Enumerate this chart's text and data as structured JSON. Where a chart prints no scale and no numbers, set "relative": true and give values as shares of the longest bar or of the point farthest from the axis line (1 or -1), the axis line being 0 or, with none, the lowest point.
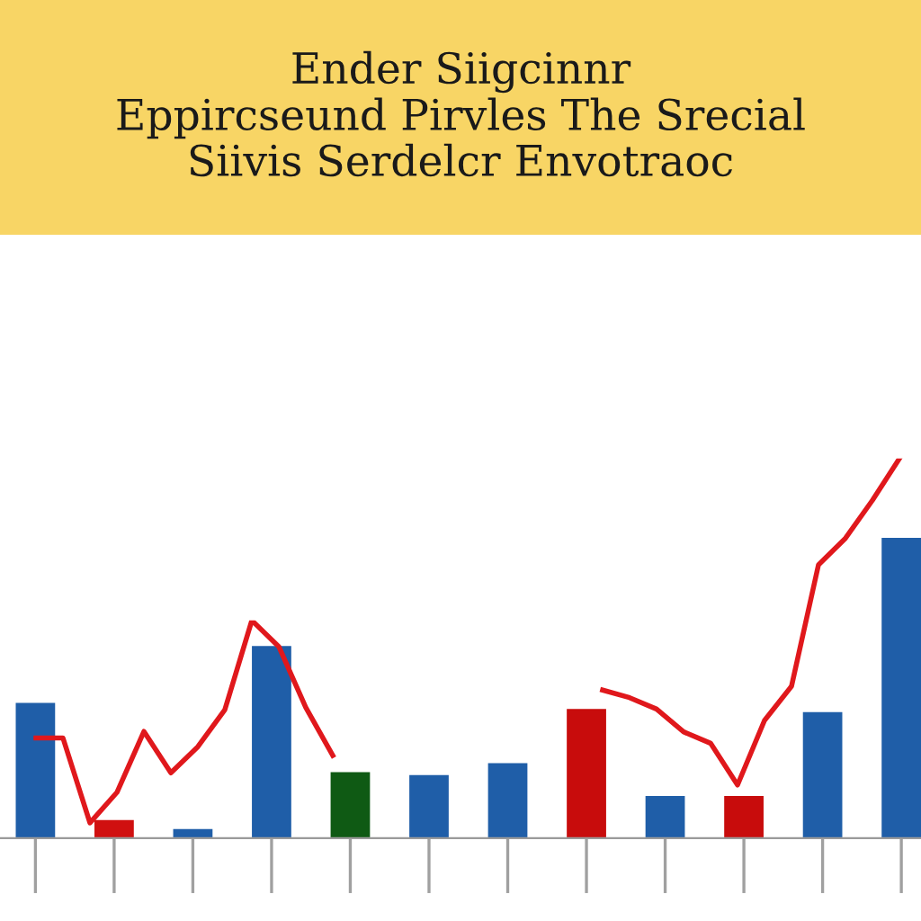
{
  "chart_data": [
    {
      "type": "bar",
      "title": "Ender Siigcinnr\nEppircseund Pirvles The Srecial\nSiivis Serdelcr Envotraoc",
      "relative": true,
      "categories": [
        null,
        null,
        null,
        null,
        null,
        null,
        null,
        null,
        null,
        null,
        null,
        null
      ],
      "colors": [
        "#1f5ea8",
        "#d01010",
        "#1f5ea8",
        "#1f5ea8",
        "#0f5a14",
        "#1f5ea8",
        "#1f5ea8",
        "#c80c0c",
        "#1f5ea8",
        "#c80c0c",
        "#1f5ea8",
        "#1f5ea8"
      ],
      "values": [
        0.45,
        0.06,
        0.03,
        0.64,
        0.22,
        0.21,
        0.25,
        0.43,
        0.14,
        0.14,
        0.42,
        1.0
      ]
    },
    {
      "type": "line",
      "relative": true,
      "categories": [
        null,
        null,
        null,
        null,
        null,
        null,
        null,
        null,
        null,
        null,
        null,
        null
      ],
      "series": [
        {
          "color": "#e0181c",
          "values": [
            0.46,
            0.46,
            0.07,
            0.21,
            0.49,
            0.3,
            0.42,
            0.59,
            1.0,
            0.88,
            0.6,
            0.38
          ]
        }
      ]
    },
    {
      "type": "line",
      "relative": true,
      "categories": [
        null,
        null,
        null,
        null,
        null,
        null,
        null,
        null,
        null,
        null,
        null,
        null
      ],
      "series": [
        {
          "color": "#e0181c",
          "values": [
            0.39,
            0.37,
            0.34,
            0.28,
            0.25,
            0.14,
            0.31,
            0.4,
            0.72,
            0.79,
            0.89,
            1.0
          ]
        }
      ]
    }
  ]
}
